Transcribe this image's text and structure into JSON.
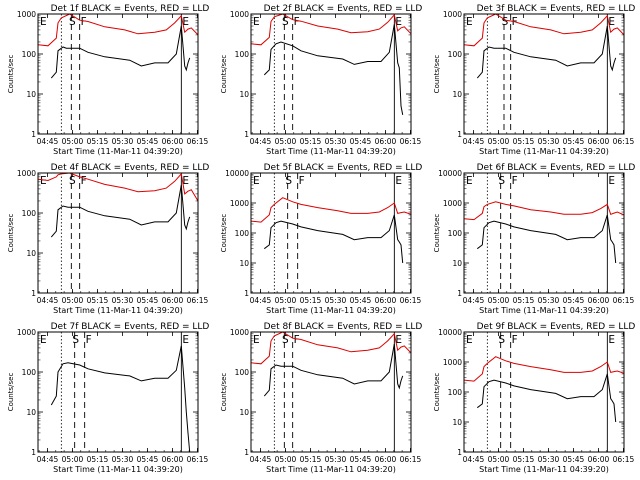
{
  "figure": {
    "ylabel": "Counts/sec",
    "xlabel": "Start Time (11-Mar-11 04:39:20)",
    "x_ticks": [
      "04:45",
      "05:00",
      "05:15",
      "05:30",
      "05:45",
      "06:00",
      "06:15"
    ],
    "y_ticks_small": [
      "1",
      "10",
      "100",
      "1000"
    ],
    "y_ticks_large": [
      "1",
      "10",
      "100",
      "1000",
      "10000"
    ],
    "colors": {
      "events": "#000000",
      "lld": "#dd0000",
      "axis": "#000000"
    }
  },
  "chart_data": [
    {
      "type": "line",
      "title": "Det 1f BLACK = Events, RED = LLD",
      "ylim": [
        1,
        1000
      ],
      "yscale": "log",
      "xlim_minutes_after_start": [
        0,
        96
      ],
      "markers": [
        {
          "label": "E",
          "x": 0
        },
        {
          "label": "S",
          "x": 18
        },
        {
          "label": "F",
          "x": 25
        },
        {
          "label": "E",
          "x": 86
        }
      ],
      "dashed_lines_x": [
        20,
        25
      ],
      "dotted_lines_x": [
        14
      ],
      "solid_lines_x": [
        86
      ],
      "series": [
        {
          "name": "Events",
          "color": "#000000",
          "x": [
            8,
            11,
            12,
            15,
            17,
            25,
            30,
            40,
            55,
            62,
            70,
            78,
            83,
            86,
            88,
            89,
            90,
            91
          ],
          "y": [
            25,
            35,
            120,
            150,
            140,
            140,
            110,
            85,
            70,
            50,
            60,
            60,
            100,
            500,
            50,
            40,
            60,
            80
          ]
        },
        {
          "name": "LLD",
          "color": "#dd0000",
          "x": [
            0,
            6,
            11,
            12,
            14,
            19,
            25,
            30,
            40,
            52,
            60,
            70,
            77,
            82,
            86,
            88,
            90,
            92,
            96
          ],
          "y": [
            170,
            160,
            250,
            600,
            800,
            1000,
            700,
            650,
            480,
            400,
            320,
            350,
            400,
            600,
            900,
            350,
            420,
            450,
            300
          ]
        }
      ]
    },
    {
      "type": "line",
      "title": "Det 2f BLACK = Events, RED = LLD",
      "ylim": [
        1,
        1000
      ],
      "yscale": "log",
      "xlim_minutes_after_start": [
        0,
        96
      ],
      "markers": [
        {
          "label": "E",
          "x": 0
        },
        {
          "label": "S",
          "x": 18
        },
        {
          "label": "F",
          "x": 25
        },
        {
          "label": "E",
          "x": 86
        }
      ],
      "dashed_lines_x": [
        20,
        25
      ],
      "dotted_lines_x": [
        14
      ],
      "solid_lines_x": [
        86
      ],
      "series": [
        {
          "name": "Events",
          "color": "#000000",
          "x": [
            8,
            11,
            12,
            15,
            18,
            25,
            30,
            40,
            55,
            62,
            70,
            78,
            83,
            86,
            88,
            89,
            90,
            91
          ],
          "y": [
            30,
            40,
            130,
            180,
            200,
            160,
            120,
            90,
            75,
            55,
            65,
            65,
            110,
            550,
            60,
            45,
            5,
            3
          ]
        },
        {
          "name": "LLD",
          "color": "#dd0000",
          "x": [
            0,
            6,
            11,
            12,
            14,
            19,
            25,
            30,
            40,
            52,
            60,
            70,
            77,
            82,
            86,
            88,
            90,
            92,
            96
          ],
          "y": [
            180,
            170,
            260,
            650,
            850,
            1000,
            720,
            660,
            500,
            420,
            340,
            360,
            420,
            620,
            950,
            380,
            450,
            480,
            320
          ]
        }
      ]
    },
    {
      "type": "line",
      "title": "Det 3f BLACK = Events, RED = LLD",
      "ylim": [
        1,
        1000
      ],
      "yscale": "log",
      "xlim_minutes_after_start": [
        0,
        96
      ],
      "markers": [
        {
          "label": "E",
          "x": 0
        },
        {
          "label": "S",
          "x": 22
        },
        {
          "label": "F",
          "x": 28
        },
        {
          "label": "E",
          "x": 86
        }
      ],
      "dashed_lines_x": [
        24,
        28
      ],
      "dotted_lines_x": [
        14
      ],
      "solid_lines_x": [
        86
      ],
      "series": [
        {
          "name": "Events",
          "color": "#000000",
          "x": [
            8,
            11,
            12,
            15,
            18,
            25,
            30,
            40,
            55,
            62,
            70,
            78,
            83,
            86,
            88,
            89,
            90,
            91
          ],
          "y": [
            25,
            35,
            120,
            150,
            140,
            140,
            110,
            85,
            70,
            50,
            60,
            60,
            100,
            500,
            50,
            40,
            60,
            80
          ]
        },
        {
          "name": "LLD",
          "color": "#dd0000",
          "x": [
            0,
            6,
            11,
            12,
            14,
            19,
            25,
            30,
            40,
            52,
            60,
            70,
            77,
            82,
            86,
            88,
            90,
            92,
            96
          ],
          "y": [
            170,
            160,
            250,
            600,
            800,
            1000,
            700,
            650,
            480,
            400,
            320,
            350,
            400,
            600,
            900,
            350,
            420,
            450,
            300
          ]
        }
      ]
    },
    {
      "type": "line",
      "title": "Det 4f BLACK = Events, RED = LLD",
      "ylim": [
        1,
        1000
      ],
      "yscale": "log",
      "xlim_minutes_after_start": [
        0,
        96
      ],
      "markers": [
        {
          "label": "E",
          "x": 0
        },
        {
          "label": "S",
          "x": 18
        },
        {
          "label": "F",
          "x": 25
        },
        {
          "label": "E",
          "x": 86
        }
      ],
      "dashed_lines_x": [
        20,
        25
      ],
      "dotted_lines_x": [
        14
      ],
      "solid_lines_x": [
        86
      ],
      "series": [
        {
          "name": "Events",
          "color": "#000000",
          "x": [
            8,
            11,
            12,
            15,
            18,
            25,
            30,
            40,
            55,
            62,
            70,
            78,
            83,
            86,
            88,
            89,
            90,
            91
          ],
          "y": [
            25,
            35,
            120,
            150,
            140,
            140,
            110,
            85,
            70,
            50,
            60,
            60,
            100,
            500,
            50,
            40,
            60,
            80
          ]
        },
        {
          "name": "LLD",
          "color": "#dd0000",
          "x": [
            0,
            6,
            11,
            12,
            14,
            19,
            25,
            30,
            40,
            52,
            60,
            70,
            77,
            82,
            86,
            88,
            90,
            92,
            96
          ],
          "y": [
            700,
            650,
            800,
            900,
            950,
            1000,
            800,
            700,
            520,
            420,
            340,
            360,
            420,
            620,
            950,
            300,
            350,
            380,
            200
          ]
        }
      ]
    },
    {
      "type": "line",
      "title": "Det 5f BLACK = Events, RED = LLD",
      "ylim": [
        1,
        10000
      ],
      "yscale": "log",
      "xlim_minutes_after_start": [
        0,
        96
      ],
      "markers": [
        {
          "label": "E",
          "x": 0
        },
        {
          "label": "S",
          "x": 20
        },
        {
          "label": "F",
          "x": 28
        },
        {
          "label": "E",
          "x": 86
        }
      ],
      "dashed_lines_x": [
        22,
        28
      ],
      "dotted_lines_x": [
        14
      ],
      "solid_lines_x": [
        86
      ],
      "series": [
        {
          "name": "Events",
          "color": "#000000",
          "x": [
            8,
            11,
            12,
            15,
            18,
            25,
            30,
            40,
            55,
            62,
            70,
            78,
            83,
            86,
            88,
            89,
            90,
            91
          ],
          "y": [
            30,
            40,
            150,
            220,
            250,
            200,
            160,
            120,
            90,
            60,
            70,
            70,
            120,
            400,
            60,
            50,
            40,
            10
          ]
        },
        {
          "name": "LLD",
          "color": "#dd0000",
          "x": [
            0,
            6,
            11,
            12,
            14,
            19,
            25,
            30,
            40,
            52,
            60,
            70,
            77,
            82,
            86,
            88,
            90,
            92,
            96
          ],
          "y": [
            250,
            230,
            400,
            700,
            900,
            1500,
            1100,
            900,
            700,
            550,
            450,
            450,
            500,
            700,
            1000,
            450,
            480,
            500,
            420
          ]
        }
      ]
    },
    {
      "type": "line",
      "title": "Det 6f BLACK = Events, RED = LLD",
      "ylim": [
        1,
        10000
      ],
      "yscale": "log",
      "xlim_minutes_after_start": [
        0,
        96
      ],
      "markers": [
        {
          "label": "E",
          "x": 0
        },
        {
          "label": "S",
          "x": 20
        },
        {
          "label": "F",
          "x": 28
        },
        {
          "label": "E",
          "x": 86
        }
      ],
      "dashed_lines_x": [
        22,
        28
      ],
      "dotted_lines_x": [
        14
      ],
      "solid_lines_x": [
        86
      ],
      "series": [
        {
          "name": "Events",
          "color": "#000000",
          "x": [
            8,
            11,
            12,
            15,
            18,
            25,
            30,
            40,
            55,
            62,
            70,
            78,
            83,
            86,
            88,
            89,
            90,
            91
          ],
          "y": [
            30,
            40,
            150,
            220,
            250,
            200,
            160,
            120,
            90,
            60,
            70,
            70,
            120,
            400,
            60,
            50,
            40,
            10
          ]
        },
        {
          "name": "LLD",
          "color": "#dd0000",
          "x": [
            0,
            6,
            11,
            12,
            14,
            19,
            25,
            30,
            40,
            52,
            60,
            70,
            77,
            82,
            86,
            88,
            90,
            92,
            96
          ],
          "y": [
            300,
            280,
            450,
            750,
            900,
            1100,
            900,
            800,
            600,
            500,
            420,
            420,
            480,
            650,
            900,
            420,
            460,
            500,
            400
          ]
        }
      ]
    },
    {
      "type": "line",
      "title": "Det 7f BLACK = Events, RED = LLD",
      "ylim": [
        1,
        1000
      ],
      "yscale": "log",
      "xlim_minutes_after_start": [
        0,
        96
      ],
      "markers": [
        {
          "label": "E",
          "x": 0
        },
        {
          "label": "S",
          "x": 20
        },
        {
          "label": "F",
          "x": 28
        },
        {
          "label": "E",
          "x": 86
        }
      ],
      "dashed_lines_x": [
        22,
        28
      ],
      "dotted_lines_x": [
        14
      ],
      "solid_lines_x": [
        86
      ],
      "series": [
        {
          "name": "Events",
          "color": "#000000",
          "x": [
            8,
            11,
            12,
            15,
            18,
            25,
            30,
            40,
            55,
            62,
            70,
            78,
            83,
            86,
            88,
            89,
            90,
            91
          ],
          "y": [
            15,
            25,
            100,
            160,
            170,
            150,
            120,
            95,
            80,
            60,
            70,
            70,
            110,
            450,
            40,
            10,
            3,
            1
          ]
        },
        {
          "name": "LLD",
          "color": "#dd0000",
          "x": [],
          "y": []
        }
      ]
    },
    {
      "type": "line",
      "title": "Det 8f BLACK = Events, RED = LLD",
      "ylim": [
        1,
        1000
      ],
      "yscale": "log",
      "xlim_minutes_after_start": [
        0,
        96
      ],
      "markers": [
        {
          "label": "E",
          "x": 0
        },
        {
          "label": "S",
          "x": 18
        },
        {
          "label": "F",
          "x": 25
        },
        {
          "label": "E",
          "x": 86
        }
      ],
      "dashed_lines_x": [
        20,
        25
      ],
      "dotted_lines_x": [
        14
      ],
      "solid_lines_x": [
        86
      ],
      "series": [
        {
          "name": "Events",
          "color": "#000000",
          "x": [
            8,
            11,
            12,
            15,
            18,
            25,
            30,
            40,
            55,
            62,
            70,
            78,
            83,
            86,
            88,
            89,
            90,
            91
          ],
          "y": [
            25,
            35,
            120,
            150,
            140,
            140,
            110,
            85,
            70,
            50,
            60,
            60,
            100,
            500,
            50,
            40,
            60,
            80
          ]
        },
        {
          "name": "LLD",
          "color": "#dd0000",
          "x": [
            0,
            6,
            11,
            12,
            14,
            19,
            25,
            30,
            40,
            52,
            60,
            70,
            77,
            82,
            86,
            88,
            90,
            92,
            96
          ],
          "y": [
            170,
            160,
            250,
            600,
            800,
            1000,
            700,
            650,
            480,
            400,
            320,
            350,
            400,
            600,
            900,
            350,
            420,
            450,
            300
          ]
        }
      ]
    },
    {
      "type": "line",
      "title": "Det 9f BLACK = Events, RED = LLD",
      "ylim": [
        1,
        10000
      ],
      "yscale": "log",
      "xlim_minutes_after_start": [
        0,
        96
      ],
      "markers": [
        {
          "label": "E",
          "x": 0
        },
        {
          "label": "S",
          "x": 20
        },
        {
          "label": "F",
          "x": 28
        },
        {
          "label": "E",
          "x": 86
        }
      ],
      "dashed_lines_x": [
        22,
        28
      ],
      "dotted_lines_x": [
        14
      ],
      "solid_lines_x": [
        86
      ],
      "series": [
        {
          "name": "Events",
          "color": "#000000",
          "x": [
            8,
            11,
            12,
            15,
            18,
            25,
            30,
            40,
            55,
            62,
            70,
            78,
            83,
            86,
            88,
            89,
            90,
            91
          ],
          "y": [
            30,
            40,
            150,
            220,
            250,
            200,
            160,
            120,
            90,
            60,
            70,
            70,
            120,
            400,
            60,
            50,
            40,
            10
          ]
        },
        {
          "name": "LLD",
          "color": "#dd0000",
          "x": [
            0,
            6,
            11,
            12,
            14,
            19,
            25,
            30,
            40,
            52,
            60,
            70,
            77,
            82,
            86,
            88,
            90,
            92,
            96
          ],
          "y": [
            250,
            230,
            400,
            700,
            900,
            1500,
            1100,
            900,
            700,
            550,
            450,
            450,
            500,
            700,
            1000,
            450,
            480,
            500,
            420
          ]
        }
      ]
    }
  ]
}
